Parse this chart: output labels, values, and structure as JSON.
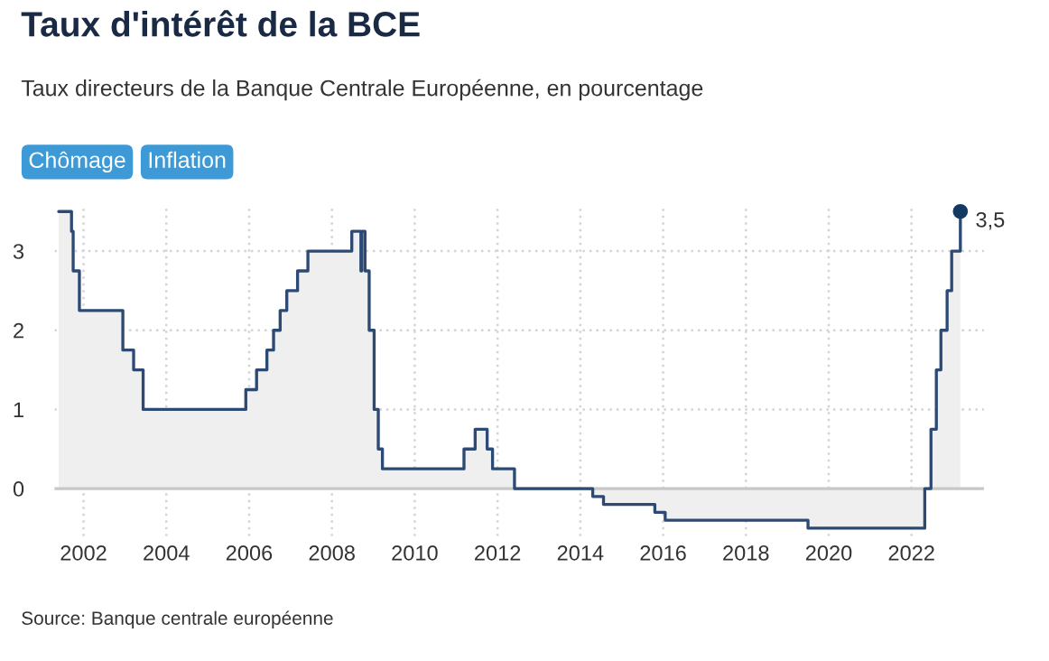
{
  "chart_data": {
    "type": "step",
    "title": "Taux d'intérêt de la BCE",
    "subtitle": "Taux directeurs de la Banque Centrale Européenne, en pourcentage",
    "annotations": [
      "Chômage",
      "Inflation",
      "Source: Banque centrale européenne"
    ],
    "series": [
      {
        "color": "#2c4a73",
        "x": [
          2001.4,
          2001.71,
          2001.75,
          2001.9,
          2002.95,
          2003.21,
          2003.44,
          2005.92,
          2006.18,
          2006.43,
          2006.59,
          2006.75,
          2006.91,
          2007.17,
          2007.42,
          2008.48,
          2008.7,
          2008.72,
          2008.8,
          2008.9,
          2009.02,
          2009.12,
          2009.22,
          2011.19,
          2011.46,
          2011.75,
          2011.88,
          2012.41,
          2014.3,
          2014.56,
          2015.8,
          2016.05,
          2019.5,
          2022.32,
          2022.47,
          2022.6,
          2022.71,
          2022.86,
          2022.97,
          2023.18
        ],
        "values": [
          3.5,
          3.25,
          2.75,
          2.25,
          1.75,
          1.5,
          1.0,
          1.25,
          1.5,
          1.75,
          2.0,
          2.25,
          2.5,
          2.75,
          3.0,
          3.25,
          2.75,
          3.25,
          2.75,
          2.0,
          1.0,
          0.5,
          0.25,
          0.5,
          0.75,
          0.5,
          0.25,
          0,
          -0.1,
          -0.2,
          -0.3,
          -0.4,
          -0.5,
          0,
          0.75,
          1.5,
          2.0,
          2.5,
          3.0,
          3.5
        ],
        "value_labels": [
          null,
          null,
          null,
          null,
          null,
          null,
          null,
          null,
          null,
          null,
          null,
          null,
          null,
          null,
          null,
          null,
          null,
          null,
          null,
          null,
          null,
          null,
          null,
          null,
          null,
          null,
          null,
          null,
          null,
          null,
          null,
          null,
          null,
          null,
          null,
          null,
          null,
          null,
          null,
          "3,5"
        ]
      }
    ],
    "xlim": [
      2001.3,
      2023.75
    ],
    "xticks": [
      2002,
      2004,
      2006,
      2008,
      2010,
      2012,
      2014,
      2016,
      2018,
      2020,
      2022
    ],
    "ylim": [
      -0.6,
      3.55
    ],
    "yticks": [
      0,
      1,
      2,
      3
    ],
    "ref_lines": [
      {
        "axis": "y",
        "value": 0,
        "label": null,
        "color": "#c8c8c8"
      }
    ],
    "grid": true,
    "legend": false
  }
}
